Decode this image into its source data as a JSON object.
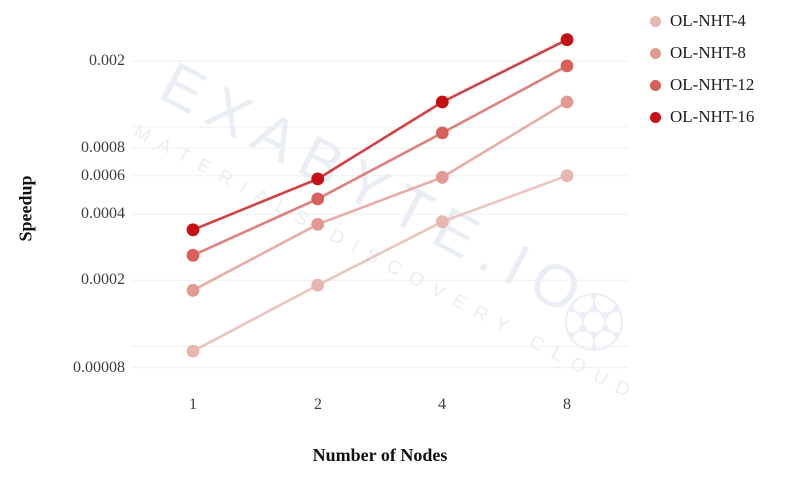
{
  "watermark": {
    "line1": "EXABYTE.IO",
    "line2": "MATERIALS DISCOVERY CLOUD"
  },
  "colors": {
    "background": "#ffffff",
    "grid": "#edeff1",
    "watermark": "#e9edf4",
    "tick_text": "#3d3d3d",
    "axis_title_text": "#111111",
    "legend_text": "#1c1c1c"
  },
  "chart_data": {
    "type": "line",
    "title": "",
    "xlabel": "Number of Nodes",
    "ylabel": "Speedup",
    "x_scale": "log2",
    "y_scale": "log10",
    "grid": true,
    "legend_position": "top-right-outside",
    "categories": [
      1,
      2,
      4,
      8
    ],
    "x_tick_labels": [
      "1",
      "2",
      "4",
      "8"
    ],
    "ylim": [
      7e-05,
      0.0027
    ],
    "y_gridlines": [
      0.002,
      0.001,
      0.0008,
      0.0006,
      0.0004,
      0.0002,
      0.0001,
      8e-05
    ],
    "y_tick_labels": [
      {
        "value": 0.002,
        "label": "0.002"
      },
      {
        "value": 0.0008,
        "label": "0.0008"
      },
      {
        "value": 0.0006,
        "label": "0.0006"
      },
      {
        "value": 0.0004,
        "label": "0.0004"
      },
      {
        "value": 0.0002,
        "label": "0.0002"
      },
      {
        "value": 8e-05,
        "label": "0.00008"
      }
    ],
    "series": [
      {
        "name": "OL-NHT-4",
        "color": "#e7b6ae",
        "values": [
          9.5e-05,
          0.00019,
          0.00037,
          0.0006
        ]
      },
      {
        "name": "OL-NHT-8",
        "color": "#e29991",
        "values": [
          0.00018,
          0.00036,
          0.00059,
          0.0013
        ]
      },
      {
        "name": "OL-NHT-12",
        "color": "#d7615a",
        "values": [
          0.00026,
          0.00047,
          0.00094,
          0.0019
        ]
      },
      {
        "name": "OL-NHT-16",
        "color": "#c51113",
        "values": [
          0.00034,
          0.00058,
          0.0013,
          0.0025
        ]
      }
    ]
  }
}
